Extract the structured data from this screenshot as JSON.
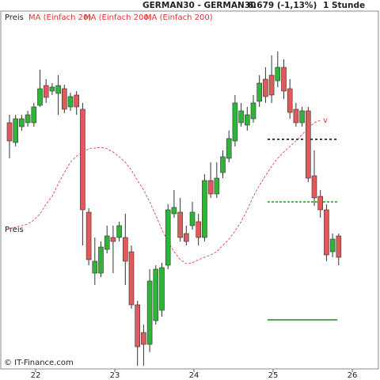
{
  "chart_data": {
    "type": "candlestick",
    "title": "GERMAN30 - GERMAN30",
    "last_price": "6.679 (-1,13%)",
    "interval": "1 Stunde",
    "name": "Preis",
    "axis_label": "Preis",
    "footer": "© IT-Finance.com",
    "annotation": "v",
    "other_legend_entries": [
      "MA (Einfach 200)",
      "MA (Einfach 200)"
    ],
    "up_color": "#2fb43a",
    "down_color": "#e05a5a",
    "xlim": [
      21.6,
      26.35
    ],
    "xticks": [
      22,
      23,
      24,
      25,
      26
    ],
    "ylim": [
      6619.2,
      6800
    ],
    "x": [
      21.67,
      21.747,
      21.824,
      21.901,
      21.978,
      22.055,
      22.132,
      22.209,
      22.286,
      22.363,
      22.44,
      22.517,
      22.594,
      22.671,
      22.748,
      22.825,
      22.902,
      22.979,
      23.056,
      23.133,
      23.21,
      23.287,
      23.364,
      23.441,
      23.518,
      23.595,
      23.672,
      23.749,
      23.826,
      23.903,
      23.98,
      24.057,
      24.134,
      24.211,
      24.288,
      24.365,
      24.442,
      24.519,
      24.596,
      24.673,
      24.75,
      24.827,
      24.904,
      24.981,
      25.058,
      25.135,
      25.212,
      25.289,
      25.366,
      25.443,
      25.52,
      25.597,
      25.674,
      25.751,
      25.828
    ],
    "open": [
      6742,
      6732,
      6740,
      6742,
      6742,
      6750.8,
      6760.8,
      6758,
      6756.8,
      6759.2,
      6750,
      6756,
      6748.8,
      6696.8,
      6666,
      6666,
      6678,
      6684,
      6684,
      6684,
      6676.8,
      6650,
      6636,
      6630,
      6642,
      6647.2,
      6670,
      6696,
      6696.8,
      6686,
      6690,
      6692,
      6684,
      6712.8,
      6706,
      6716.8,
      6724,
      6732.8,
      6742,
      6740.8,
      6744,
      6752.8,
      6764,
      6766,
      6763.2,
      6770,
      6759.2,
      6748.8,
      6742,
      6748,
      6715.2,
      6704.8,
      6698,
      6676.8,
      6684.8
    ],
    "high": [
      6746,
      6746,
      6746,
      6748,
      6752,
      6768.8,
      6764,
      6762,
      6766,
      6761.2,
      6757.2,
      6758,
      6752,
      6698.8,
      6684,
      6682,
      6690,
      6690,
      6692,
      6696,
      6680,
      6652,
      6640,
      6668,
      6670,
      6671.2,
      6700.8,
      6708,
      6704,
      6690,
      6702,
      6696,
      6716,
      6722,
      6722,
      6728,
      6738,
      6756,
      6752,
      6750,
      6756,
      6766,
      6770,
      6776,
      6778,
      6774,
      6764,
      6752,
      6750,
      6750,
      6728,
      6708,
      6700.8,
      6686,
      6686
    ],
    "low": [
      6724,
      6730,
      6738,
      6740,
      6740,
      6750,
      6752,
      6756,
      6746,
      6746.8,
      6748,
      6746,
      6680,
      6670,
      6660,
      6664,
      6676,
      6666,
      6682,
      6660,
      6648,
      6619.2,
      6619.2,
      6626,
      6640,
      6644,
      6668,
      6694,
      6682,
      6680,
      6688,
      6680,
      6682,
      6704,
      6704,
      6714,
      6722,
      6730,
      6740,
      6738,
      6742,
      6750,
      6752,
      6752,
      6760,
      6754,
      6744,
      6740,
      6740,
      6712,
      6700,
      6694,
      6672,
      6674,
      6670
    ],
    "close": [
      6732.8,
      6744,
      6744,
      6746,
      6750,
      6759.2,
      6754.8,
      6760,
      6760.8,
      6748.8,
      6755.2,
      6750,
      6698,
      6672.8,
      6672,
      6679.2,
      6684.8,
      6682,
      6690,
      6672,
      6650,
      6628.8,
      6630,
      6662,
      6668,
      6668.8,
      6698,
      6699.2,
      6684,
      6682,
      6696.8,
      6684,
      6712.8,
      6706,
      6714,
      6724.8,
      6734,
      6752,
      6748,
      6746,
      6752,
      6762,
      6755.2,
      6756,
      6770,
      6758,
      6747.2,
      6742,
      6748,
      6714,
      6704,
      6698,
      6675.2,
      6683.2,
      6674
    ],
    "series": [
      {
        "name": "MA (Einfach 20)",
        "color": "#e03030",
        "values": [
          6688.4,
          6689.2,
          6690,
          6690.8,
          6692.8,
          6696,
          6700.8,
          6704.8,
          6711.2,
          6716.8,
          6722,
          6725.2,
          6727.2,
          6728.8,
          6729.2,
          6729.6,
          6728.8,
          6727.2,
          6724.8,
          6722,
          6718,
          6712.8,
          6708,
          6702,
          6695.2,
          6688,
          6682,
          6676.8,
          6672.8,
          6670.8,
          6671.2,
          6672.8,
          6674,
          6675.2,
          6676.8,
          6680,
          6683.2,
          6687.2,
          6692,
          6698,
          6704.8,
          6710.4,
          6715.2,
          6720,
          6724,
          6727.2,
          6730,
          6732.8,
          6736,
          6739.2,
          6742,
          6743.2,
          null,
          null,
          null
        ]
      }
    ],
    "levels": [
      {
        "value": 6733.6,
        "color": "#000000",
        "dash": "3,3"
      },
      {
        "value": 6702,
        "color": "#1a9a1a",
        "dash": "3,2"
      },
      {
        "value": 6642.4,
        "color": "#1a8a1a",
        "dash": "none"
      }
    ]
  }
}
